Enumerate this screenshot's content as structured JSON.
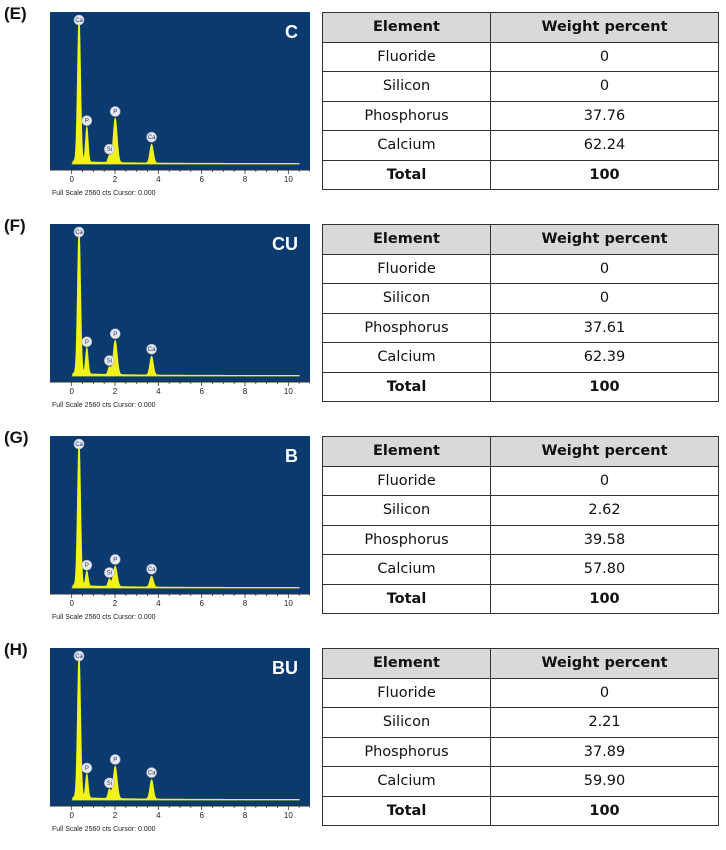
{
  "x_axis": {
    "ticks": [
      "0",
      "2",
      "4",
      "6",
      "8",
      "10"
    ],
    "range": [
      -1,
      11
    ]
  },
  "y_axis": {
    "range": [
      0,
      2560
    ]
  },
  "colors": {
    "plot_background": "#0b3a6e",
    "peak_fill": "#f2f21a",
    "axis_strip": "#ffffff"
  },
  "panels": [
    {
      "letter": "(E)",
      "sample": "C",
      "footer": "Full Scale 2560 cts Cursor: 0.000",
      "table": {
        "headers": [
          "Element",
          "Weight percent"
        ],
        "rows": [
          [
            "Fluoride",
            "0"
          ],
          [
            "Silicon",
            "0"
          ],
          [
            "Phosphorus",
            "37.76"
          ],
          [
            "Calcium",
            "62.24"
          ],
          [
            "Total",
            "100"
          ]
        ]
      },
      "peaks": [
        {
          "label": "Ca",
          "x": 0.34,
          "y": 2560
        },
        {
          "label": "P",
          "x": 0.7,
          "y": 620
        },
        {
          "label": "Si",
          "x": 1.74,
          "y": 120
        },
        {
          "label": "P",
          "x": 2.01,
          "y": 780
        },
        {
          "label": "Ca",
          "x": 3.69,
          "y": 330
        }
      ]
    },
    {
      "letter": "(F)",
      "sample": "CU",
      "footer": "Full Scale 2560 cts Cursor: 0.000",
      "table": {
        "headers": [
          "Element",
          "Weight percent"
        ],
        "rows": [
          [
            "Fluoride",
            "0"
          ],
          [
            "Silicon",
            "0"
          ],
          [
            "Phosphorus",
            "37.61"
          ],
          [
            "Calcium",
            "62.39"
          ],
          [
            "Total",
            "100"
          ]
        ]
      },
      "peaks": [
        {
          "label": "Ca",
          "x": 0.34,
          "y": 2560
        },
        {
          "label": "P",
          "x": 0.7,
          "y": 460
        },
        {
          "label": "Si",
          "x": 1.74,
          "y": 130
        },
        {
          "label": "P",
          "x": 2.01,
          "y": 600
        },
        {
          "label": "Ca",
          "x": 3.69,
          "y": 330
        }
      ]
    },
    {
      "letter": "(G)",
      "sample": "B",
      "footer": "Full Scale 2560 cts Cursor: 0.000",
      "table": {
        "headers": [
          "Element",
          "Weight percent"
        ],
        "rows": [
          [
            "Fluoride",
            "0"
          ],
          [
            "Silicon",
            "2.62"
          ],
          [
            "Phosphorus",
            "39.58"
          ],
          [
            "Calcium",
            "57.80"
          ],
          [
            "Total",
            "100"
          ]
        ]
      },
      "peaks": [
        {
          "label": "Ca",
          "x": 0.34,
          "y": 2560
        },
        {
          "label": "P",
          "x": 0.7,
          "y": 260
        },
        {
          "label": "Si",
          "x": 1.74,
          "y": 130
        },
        {
          "label": "P",
          "x": 2.01,
          "y": 360
        },
        {
          "label": "Ca",
          "x": 3.69,
          "y": 190
        }
      ]
    },
    {
      "letter": "(H)",
      "sample": "BU",
      "footer": "Full Scale 2560 cts Cursor: 0.000",
      "table": {
        "headers": [
          "Element",
          "Weight percent"
        ],
        "rows": [
          [
            "Fluoride",
            "0"
          ],
          [
            "Silicon",
            "2.21"
          ],
          [
            "Phosphorus",
            "37.89"
          ],
          [
            "Calcium",
            "59.90"
          ],
          [
            "Total",
            "100"
          ]
        ]
      },
      "peaks": [
        {
          "label": "Ca",
          "x": 0.34,
          "y": 2560
        },
        {
          "label": "P",
          "x": 0.7,
          "y": 420
        },
        {
          "label": "Si",
          "x": 1.74,
          "y": 160
        },
        {
          "label": "P",
          "x": 2.01,
          "y": 570
        },
        {
          "label": "Ca",
          "x": 3.69,
          "y": 340
        }
      ]
    }
  ],
  "chart_data": [
    {
      "type": "table",
      "panel": "(E)",
      "sample": "C",
      "columns": [
        "Element",
        "Weight percent"
      ],
      "rows": [
        [
          "Fluoride",
          0
        ],
        [
          "Silicon",
          0
        ],
        [
          "Phosphorus",
          37.76
        ],
        [
          "Calcium",
          62.24
        ],
        [
          "Total",
          100
        ]
      ]
    },
    {
      "type": "table",
      "panel": "(F)",
      "sample": "CU",
      "columns": [
        "Element",
        "Weight percent"
      ],
      "rows": [
        [
          "Fluoride",
          0
        ],
        [
          "Silicon",
          0
        ],
        [
          "Phosphorus",
          37.61
        ],
        [
          "Calcium",
          62.39
        ],
        [
          "Total",
          100
        ]
      ]
    },
    {
      "type": "table",
      "panel": "(G)",
      "sample": "B",
      "columns": [
        "Element",
        "Weight percent"
      ],
      "rows": [
        [
          "Fluoride",
          0
        ],
        [
          "Silicon",
          2.62
        ],
        [
          "Phosphorus",
          39.58
        ],
        [
          "Calcium",
          57.8
        ],
        [
          "Total",
          100
        ]
      ]
    },
    {
      "type": "table",
      "panel": "(H)",
      "sample": "BU",
      "columns": [
        "Element",
        "Weight percent"
      ],
      "rows": [
        [
          "Fluoride",
          0
        ],
        [
          "Silicon",
          2.21
        ],
        [
          "Phosphorus",
          37.89
        ],
        [
          "Calcium",
          59.9
        ],
        [
          "Total",
          100
        ]
      ]
    }
  ]
}
